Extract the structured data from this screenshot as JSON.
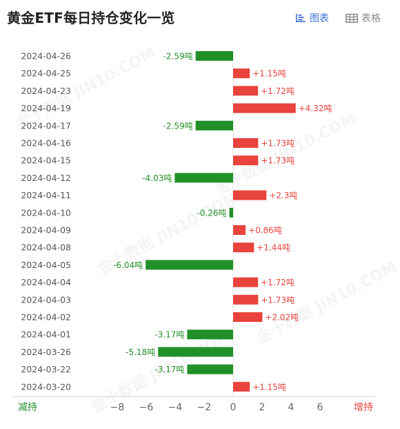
{
  "header": {
    "title": "黄金ETF每日持仓变化一览",
    "chart_tab_label": "图表",
    "table_tab_label": "表格"
  },
  "colors": {
    "increase": "#e8433c",
    "decrease": "#229028",
    "active_tab": "#3b6fd6",
    "inactive_tab": "#8a8a8a"
  },
  "chart_data": {
    "type": "bar",
    "orientation": "horizontal",
    "title": "黄金ETF每日持仓变化一览",
    "unit": "吨",
    "categories": [
      "2024-04-26",
      "2024-04-25",
      "2024-04-23",
      "2024-04-19",
      "2024-04-17",
      "2024-04-16",
      "2024-04-15",
      "2024-04-12",
      "2024-04-11",
      "2024-04-10",
      "2024-04-09",
      "2024-04-08",
      "2024-04-05",
      "2024-04-04",
      "2024-04-03",
      "2024-04-02",
      "2024-04-01",
      "2024-03-26",
      "2024-03-22",
      "2024-03-20"
    ],
    "values": [
      -2.59,
      1.15,
      1.72,
      4.32,
      -2.59,
      1.73,
      1.73,
      -4.03,
      2.3,
      -0.26,
      0.86,
      1.44,
      -6.04,
      1.72,
      1.73,
      2.02,
      -3.17,
      -5.18,
      -3.17,
      1.15
    ],
    "data_labels": [
      "-2.59吨",
      "+1.15吨",
      "+1.72吨",
      "+4.32吨",
      "-2.59吨",
      "+1.73吨",
      "+1.73吨",
      "-4.03吨",
      "+2.3吨",
      "-0.26吨",
      "+0.86吨",
      "+1.44吨",
      "-6.04吨",
      "+1.72吨",
      "+1.73吨",
      "+2.02吨",
      "-3.17吨",
      "-5.18吨",
      "-3.17吨",
      "+1.15吨"
    ],
    "x_ticks": [
      -8,
      -6,
      -4,
      -2,
      0,
      2,
      4,
      6
    ],
    "x_tick_labels": [
      "−8",
      "−6",
      "−4",
      "−2",
      "0",
      "2",
      "4",
      "6"
    ],
    "xlim": [
      -8,
      6
    ],
    "left_axis_label": "减持",
    "right_axis_label": "增持",
    "grid": false
  },
  "watermark": "金十数据 JIN10.COM"
}
